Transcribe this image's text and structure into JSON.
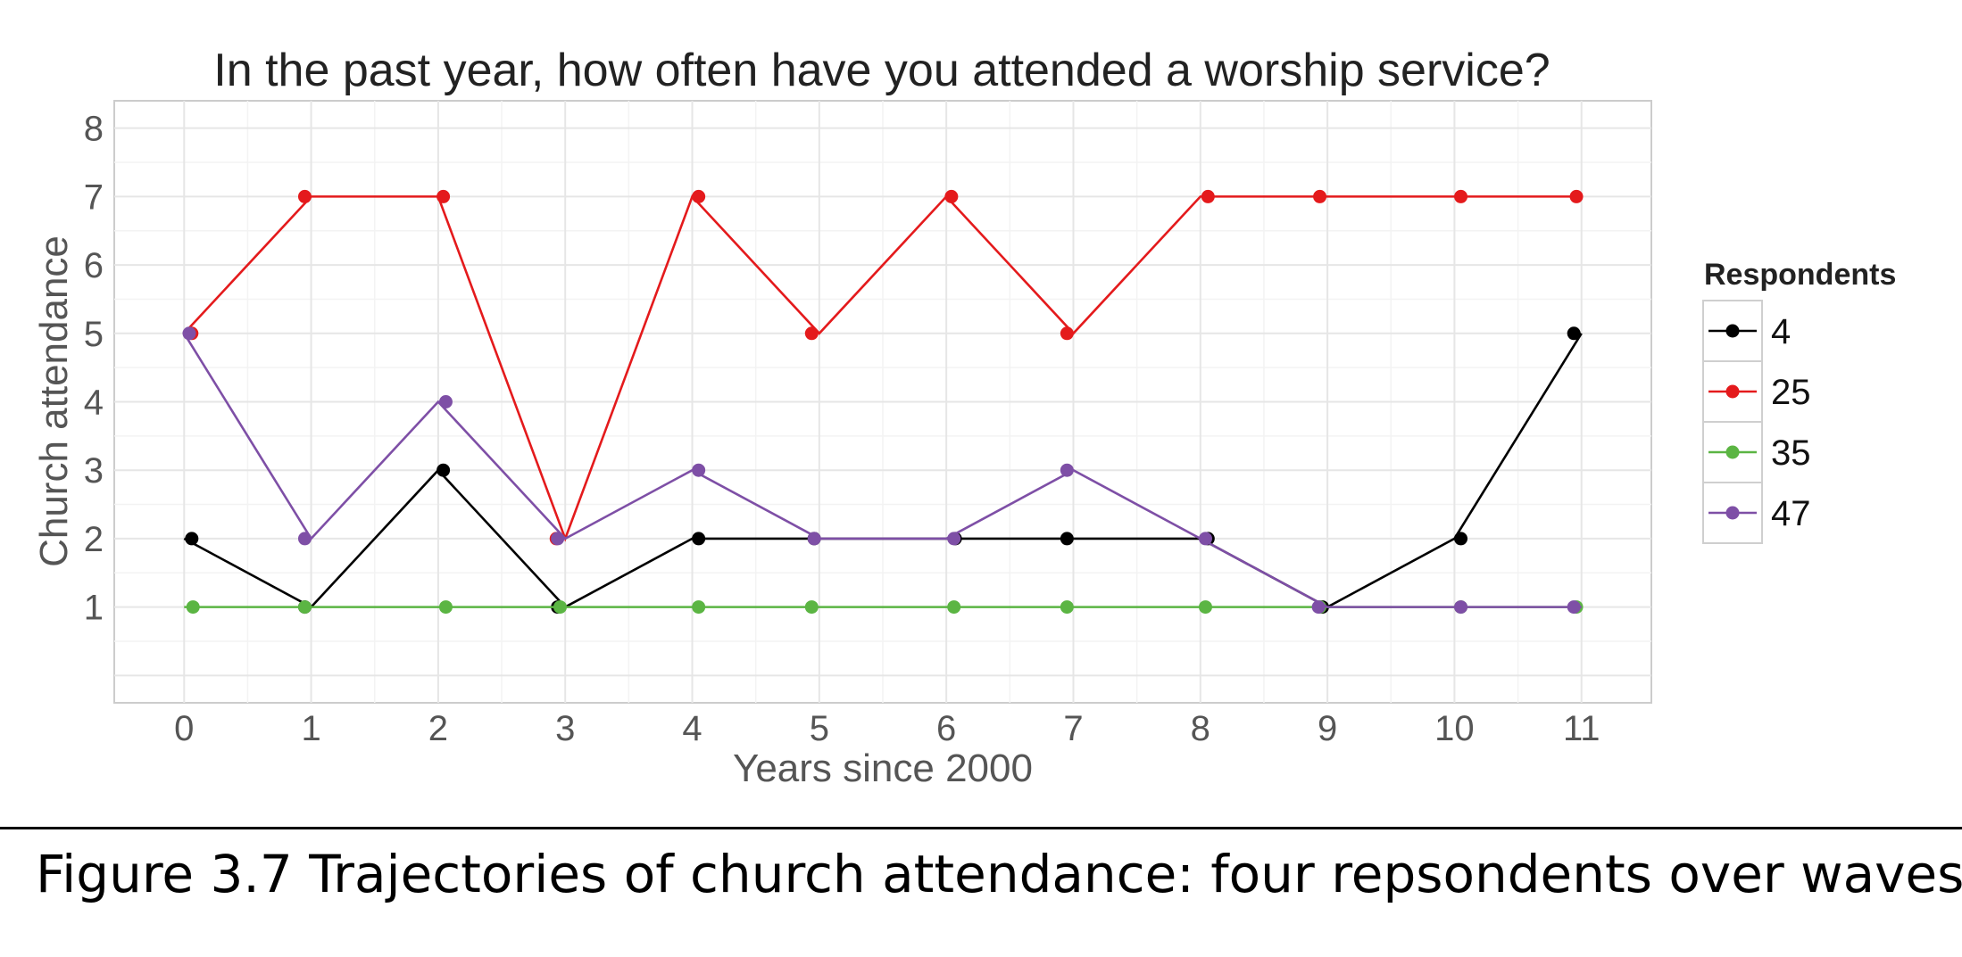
{
  "chart_data": {
    "type": "line",
    "title": "In the past year, how often have you attended a worship service?",
    "xlabel": "Years since 2000",
    "ylabel": "Church attendance",
    "x": [
      0,
      1,
      2,
      3,
      4,
      5,
      6,
      7,
      8,
      9,
      10,
      11
    ],
    "x_ticks": [
      "0",
      "1",
      "2",
      "3",
      "4",
      "5",
      "6",
      "7",
      "8",
      "9",
      "10",
      "11"
    ],
    "y_ticks": [
      "1",
      "2",
      "3",
      "4",
      "5",
      "6",
      "7",
      "8"
    ],
    "xlim": [
      -0.55,
      11.55
    ],
    "ylim": [
      -0.4,
      8.4
    ],
    "grid": true,
    "legend": {
      "title": "Respondents",
      "position": "right"
    },
    "series": [
      {
        "name": "4",
        "color": "#000000",
        "values": [
          2,
          1,
          3,
          1,
          2,
          2,
          2,
          2,
          2,
          1,
          2,
          5
        ]
      },
      {
        "name": "25",
        "color": "#e41a1c",
        "values": [
          5,
          7,
          7,
          2,
          7,
          5,
          7,
          5,
          7,
          7,
          7,
          7
        ]
      },
      {
        "name": "35",
        "color": "#5bb543",
        "values": [
          1,
          1,
          1,
          1,
          1,
          1,
          1,
          1,
          1,
          1,
          1,
          1
        ]
      },
      {
        "name": "47",
        "color": "#7e4fa6",
        "values": [
          5,
          2,
          4,
          2,
          3,
          2,
          2,
          3,
          2,
          1,
          1,
          1
        ]
      }
    ]
  },
  "caption": "Figure 3.7 Trajectories of church attendance: four repsondents over waves"
}
